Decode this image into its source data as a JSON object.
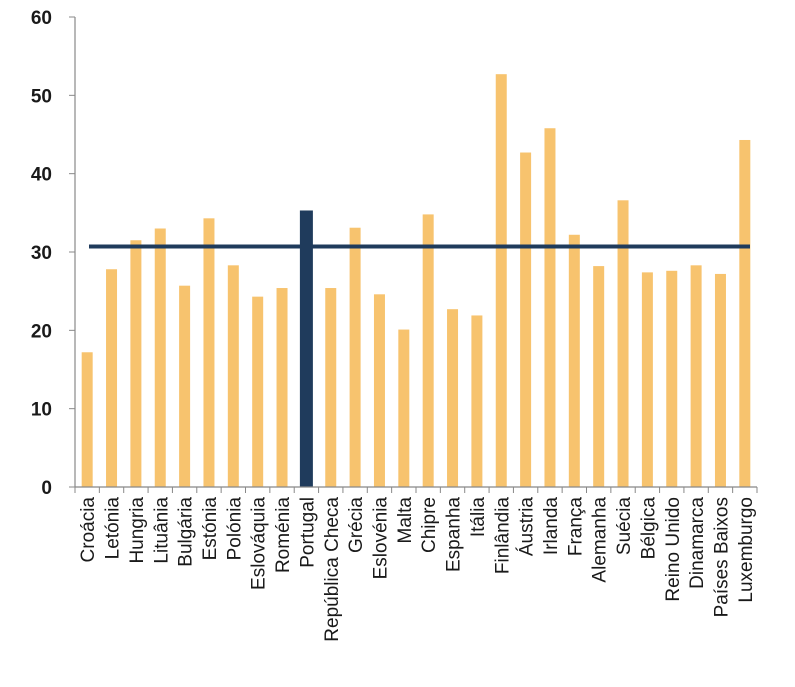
{
  "chart_data": {
    "type": "bar",
    "categories": [
      "Croácia",
      "Letónia",
      "Hungria",
      "Lituânia",
      "Bulgária",
      "Estónia",
      "Polónia",
      "Eslováquia",
      "Roménia",
      "Portugal",
      "República Checa",
      "Grécia",
      "Eslovénia",
      "Malta",
      "Chipre",
      "Espanha",
      "Itália",
      "Finlândia",
      "Áustria",
      "Irlanda",
      "França",
      "Alemanha",
      "Suécia",
      "Bélgica",
      "Reino Unido",
      "Dinamarca",
      "Países Baixos",
      "Luxemburgo"
    ],
    "values": [
      17.2,
      27.8,
      31.5,
      33.0,
      25.7,
      34.3,
      28.3,
      24.3,
      25.4,
      35.3,
      25.4,
      33.1,
      24.6,
      20.1,
      34.8,
      22.7,
      21.9,
      52.7,
      42.7,
      45.8,
      32.2,
      28.2,
      36.6,
      27.4,
      27.6,
      28.3,
      27.2,
      44.3
    ],
    "highlight": "Portugal",
    "reference_line": 30.7,
    "ylim": [
      0,
      60
    ],
    "yticks": [
      "0",
      "10",
      "20",
      "30",
      "40",
      "50",
      "60"
    ],
    "title": "",
    "xlabel": "",
    "ylabel": "",
    "grid": false,
    "colors": {
      "bar": "#f7c36e",
      "highlight": "#1f3b5c",
      "reference_line": "#1f3b5c",
      "axis": "#888888"
    }
  }
}
